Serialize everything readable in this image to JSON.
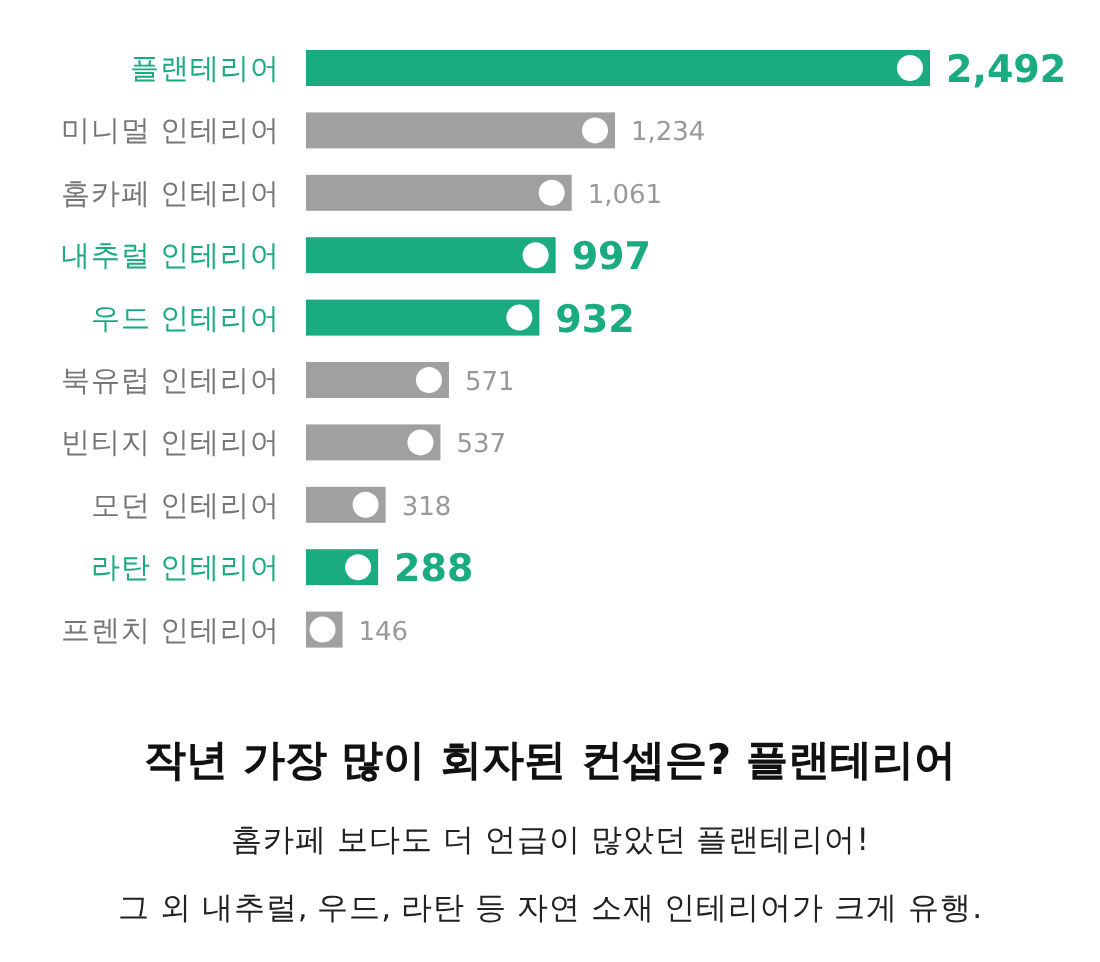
{
  "chart_data": {
    "type": "bar",
    "orientation": "horizontal",
    "value_labels": [
      "2,492",
      "1,234",
      "1,061",
      "997",
      "932",
      "571",
      "537",
      "318",
      "288",
      "146"
    ],
    "title": "작년 가장 많이 회자된 컨셉은? 플랜테리어",
    "subtitle": "홈카페 보다도 더 언급이 많았던 플랜테리어!",
    "annotations": [
      "그 외 내추럴, 우드, 라탄 등 자연 소재 인테리어가 크게 유행."
    ],
    "categories": [
      "플랜테리어",
      "미니멀 인테리어",
      "홈카페 인테리어",
      "내추럴 인테리어",
      "우드 인테리어",
      "북유럽 인테리어",
      "빈티지 인테리어",
      "모던 인테리어",
      "라탄 인테리어",
      "프렌치 인테리어"
    ],
    "values": [
      2492,
      1234,
      1061,
      997,
      932,
      571,
      537,
      318,
      288,
      146
    ],
    "colors": [
      "#1aab80",
      "#a0a0a0",
      "#a0a0a0",
      "#1aab80",
      "#1aab80",
      "#a0a0a0",
      "#a0a0a0",
      "#a0a0a0",
      "#1aab80",
      "#a0a0a0"
    ]
  }
}
